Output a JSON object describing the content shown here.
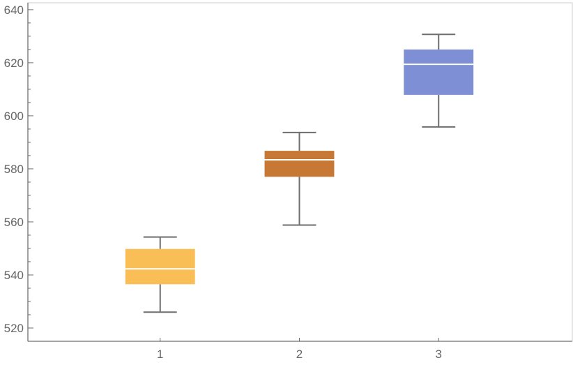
{
  "chart_data": {
    "type": "box",
    "title": "",
    "xlabel": "",
    "ylabel": "",
    "categories": [
      "1",
      "2",
      "3"
    ],
    "xlim": [
      0.05,
      3.96
    ],
    "ylim": [
      515,
      642.6
    ],
    "yticks": [
      520,
      540,
      560,
      580,
      600,
      620,
      640
    ],
    "ytick_labels": [
      "520",
      "540",
      "560",
      "580",
      "600",
      "620",
      "640"
    ],
    "minor_ytick_step": 5,
    "grid": false,
    "series": [
      {
        "name": "1",
        "x": 1,
        "color": "#F9BE55",
        "whisker_low": 526,
        "q1": 536.5,
        "median": 542.3,
        "q3": 549.8,
        "whisker_high": 554.3
      },
      {
        "name": "2",
        "x": 2,
        "color": "#C77834",
        "whisker_low": 558.8,
        "q1": 577,
        "median": 583.4,
        "q3": 586.8,
        "whisker_high": 593.7
      },
      {
        "name": "3",
        "x": 3,
        "color": "#7F8FD6",
        "whisker_low": 595.8,
        "q1": 607.9,
        "median": 619.4,
        "q3": 625,
        "whisker_high": 630.7
      }
    ]
  }
}
